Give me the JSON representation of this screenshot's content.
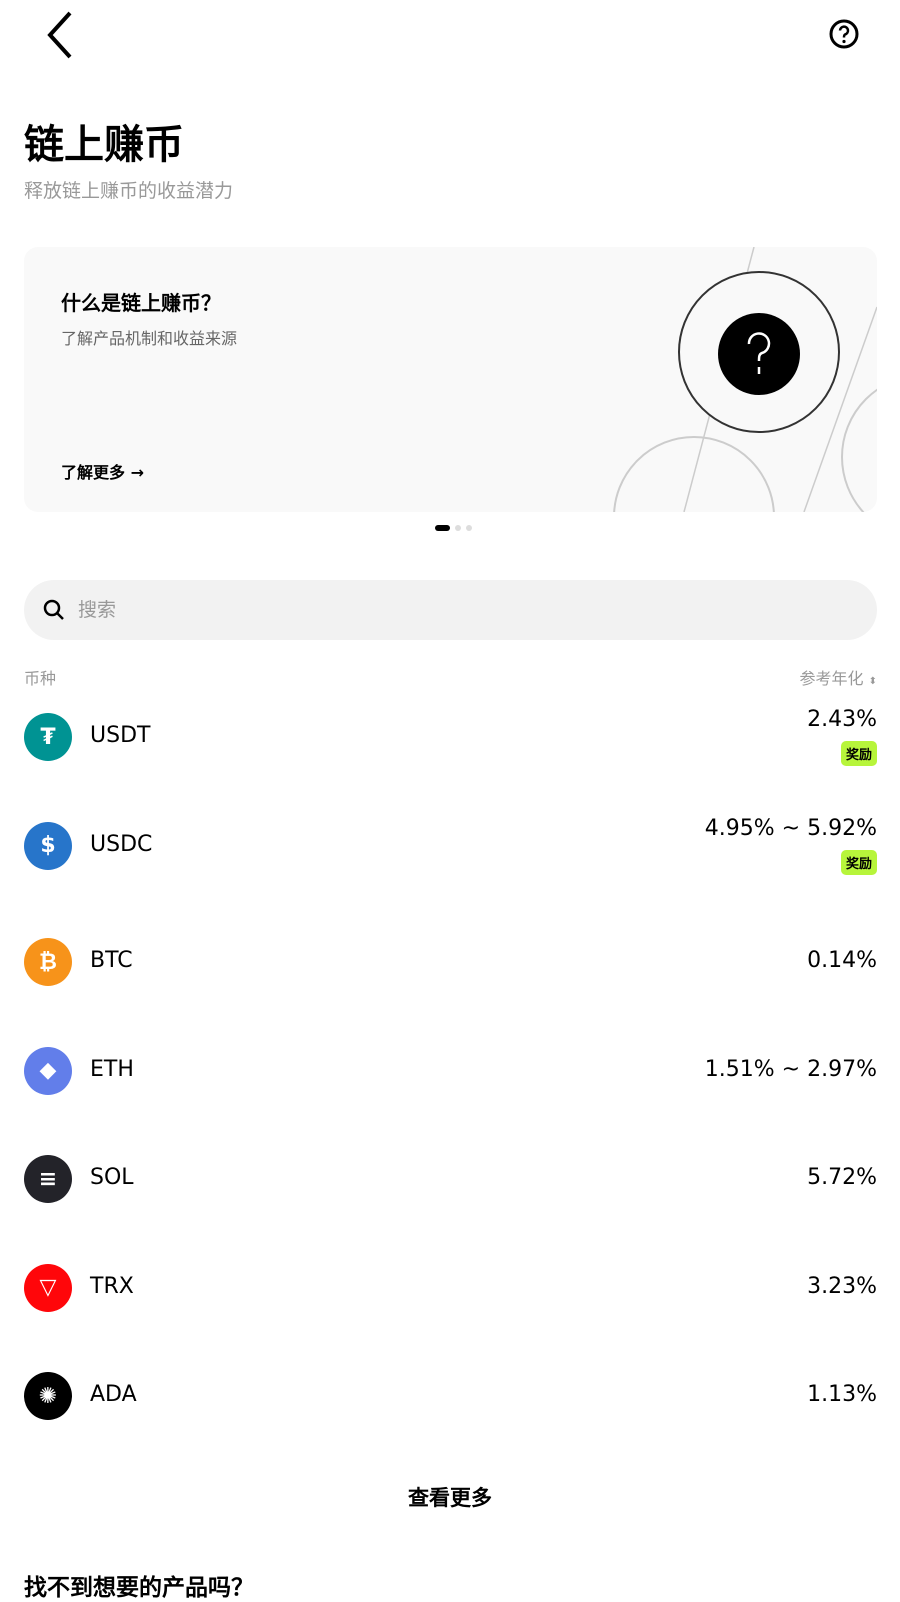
{
  "header": {
    "back_icon": "chevron-left-icon",
    "help_icon": "question-circle-icon"
  },
  "page": {
    "title": "链上赚币",
    "subtitle": "释放链上赚币的收益潜力"
  },
  "banner": {
    "title": "什么是链上赚币？",
    "description": "了解产品机制和收益来源",
    "link": "了解更多 →",
    "carousel_pages": 3,
    "active_page": 1
  },
  "search": {
    "placeholder": "搜索"
  },
  "list": {
    "col_coin": "币种",
    "col_apy": "参考年化",
    "items": [
      {
        "name": "USDT",
        "apy": "2.43%",
        "badge": "奖励",
        "color": "#009393"
      },
      {
        "name": "USDC",
        "apy": "4.95% ~ 5.92%",
        "badge": "奖励",
        "color": "#2775ca"
      },
      {
        "name": "BTC",
        "apy": "0.14%",
        "color": "#f7931a"
      },
      {
        "name": "ETH",
        "apy": "1.51% ~ 2.97%",
        "color": "#627eea"
      },
      {
        "name": "SOL",
        "apy": "5.72%",
        "color": "#232329"
      },
      {
        "name": "TRX",
        "apy": "3.23%",
        "color": "#ff060a"
      },
      {
        "name": "ADA",
        "apy": "1.13%",
        "color": "#000000"
      }
    ],
    "more": "查看更多"
  },
  "footer": {
    "heading": "找不到想要的产品吗？"
  },
  "colors": {
    "badge": "#b7f53b"
  }
}
